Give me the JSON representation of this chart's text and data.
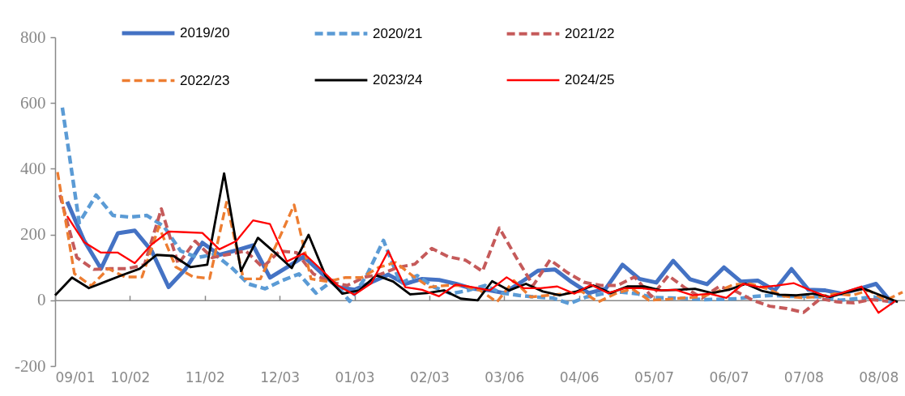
{
  "chart_data": {
    "type": "line",
    "legend": "top",
    "ylim": [
      -200,
      800
    ],
    "yticks": [
      -200,
      0,
      200,
      400,
      600,
      800
    ],
    "xlim": [
      "2022-09-01",
      "2023-08-19"
    ],
    "xticks": [
      {
        "value": "2022-09-01",
        "label": "09/01"
      },
      {
        "value": "2022-10-02",
        "label": "10/02"
      },
      {
        "value": "2022-11-02",
        "label": "11/02"
      },
      {
        "value": "2022-12-03",
        "label": "12/03"
      },
      {
        "value": "2023-01-03",
        "label": "01/03"
      },
      {
        "value": "2023-02-03",
        "label": "02/03"
      },
      {
        "value": "2023-03-06",
        "label": "03/06"
      },
      {
        "value": "2023-04-06",
        "label": "04/06"
      },
      {
        "value": "2023-05-07",
        "label": "05/07"
      },
      {
        "value": "2023-06-07",
        "label": "06/07"
      },
      {
        "value": "2023-07-08",
        "label": "07/08"
      },
      {
        "value": "2023-08-08",
        "label": "08/08"
      }
    ],
    "series": [
      {
        "name": "2019/20",
        "color": "#4472c4",
        "line_style": "solid",
        "x": [
          "2022-09-06",
          "2022-09-13",
          "2022-09-20",
          "2022-09-27",
          "2022-10-04",
          "2022-10-11",
          "2022-10-18",
          "2022-10-25",
          "2022-11-01",
          "2022-11-08",
          "2022-11-15",
          "2022-11-22",
          "2022-11-29",
          "2022-12-06",
          "2022-12-13",
          "2022-12-20",
          "2022-12-27",
          "2023-01-03",
          "2023-01-10",
          "2023-01-17",
          "2023-01-24",
          "2023-01-31",
          "2023-02-07",
          "2023-02-14",
          "2023-02-21",
          "2023-02-28",
          "2023-03-06",
          "2023-03-13",
          "2023-03-20",
          "2023-03-27",
          "2023-04-03",
          "2023-04-10",
          "2023-04-17",
          "2023-04-24",
          "2023-05-01",
          "2023-05-08",
          "2023-05-15",
          "2023-05-22",
          "2023-05-29",
          "2023-06-05",
          "2023-06-12",
          "2023-06-19",
          "2023-06-26",
          "2023-07-03",
          "2023-07-10",
          "2023-07-17",
          "2023-07-24",
          "2023-07-31",
          "2023-08-07",
          "2023-08-14"
        ],
        "values": [
          300,
          182,
          96,
          204,
          212,
          150,
          40,
          95,
          175,
          138,
          152,
          167,
          69,
          100,
          133,
          85,
          40,
          32,
          55,
          78,
          50,
          65,
          62,
          50,
          35,
          30,
          22,
          55,
          90,
          94,
          55,
          22,
          35,
          108,
          65,
          54,
          120,
          64,
          49,
          100,
          57,
          60,
          30,
          95,
          32,
          30,
          20,
          35,
          50,
          -12
        ]
      },
      {
        "name": "2020/21",
        "color": "#5b9bd5",
        "line_style": "dashed",
        "x": [
          "2022-09-04",
          "2022-09-11",
          "2022-09-18",
          "2022-09-25",
          "2022-10-02",
          "2022-10-09",
          "2022-10-16",
          "2022-10-23",
          "2022-10-30",
          "2022-11-06",
          "2022-11-13",
          "2022-11-20",
          "2022-11-27",
          "2022-12-04",
          "2022-12-11",
          "2022-12-18",
          "2022-12-25",
          "2023-01-01",
          "2023-01-08",
          "2023-01-15",
          "2023-01-22",
          "2023-01-29",
          "2023-02-05",
          "2023-02-12",
          "2023-02-19",
          "2023-02-26",
          "2023-03-05",
          "2023-03-12",
          "2023-03-19",
          "2023-03-26",
          "2023-04-02",
          "2023-04-09",
          "2023-04-16",
          "2023-04-23",
          "2023-04-30",
          "2023-05-07",
          "2023-05-14",
          "2023-05-21",
          "2023-05-28",
          "2023-06-04",
          "2023-06-11",
          "2023-06-18",
          "2023-06-25",
          "2023-07-02",
          "2023-07-09",
          "2023-07-16",
          "2023-07-23",
          "2023-07-30",
          "2023-08-06",
          "2023-08-13"
        ],
        "values": [
          586,
          236,
          320,
          258,
          253,
          258,
          225,
          150,
          130,
          140,
          100,
          50,
          35,
          60,
          80,
          22,
          60,
          -3,
          75,
          182,
          52,
          75,
          40,
          20,
          30,
          45,
          22,
          15,
          10,
          7,
          -10,
          10,
          20,
          25,
          20,
          8,
          7,
          5,
          2,
          3,
          5,
          12,
          15,
          12,
          12,
          10,
          0,
          5,
          10,
          -5
        ]
      },
      {
        "name": "2021/22",
        "color": "#c55a5a",
        "line_style": "dashed",
        "x": [
          "2022-09-03",
          "2022-09-10",
          "2022-09-17",
          "2022-09-24",
          "2022-10-01",
          "2022-10-08",
          "2022-10-15",
          "2022-10-22",
          "2022-10-29",
          "2022-11-05",
          "2022-11-12",
          "2022-11-19",
          "2022-11-26",
          "2022-12-03",
          "2022-12-10",
          "2022-12-17",
          "2022-12-24",
          "2022-12-31",
          "2023-01-07",
          "2023-01-14",
          "2023-01-21",
          "2023-01-28",
          "2023-02-04",
          "2023-02-11",
          "2023-02-18",
          "2023-02-25",
          "2023-03-04",
          "2023-03-11",
          "2023-03-18",
          "2023-03-25",
          "2023-04-01",
          "2023-04-08",
          "2023-04-15",
          "2023-04-22",
          "2023-04-29",
          "2023-05-06",
          "2023-05-13",
          "2023-05-20",
          "2023-05-27",
          "2023-06-03",
          "2023-06-10",
          "2023-06-17",
          "2023-06-24",
          "2023-07-01",
          "2023-07-08",
          "2023-07-15",
          "2023-07-22",
          "2023-07-29",
          "2023-08-05",
          "2023-08-12"
        ],
        "values": [
          320,
          130,
          94,
          96,
          96,
          108,
          278,
          110,
          180,
          130,
          140,
          150,
          100,
          150,
          145,
          80,
          55,
          45,
          70,
          80,
          100,
          110,
          158,
          132,
          122,
          88,
          220,
          130,
          45,
          123,
          85,
          55,
          45,
          45,
          71,
          12,
          75,
          37,
          7,
          42,
          27,
          0,
          -18,
          -25,
          -37,
          5,
          -5,
          -8,
          2,
          -3
        ]
      },
      {
        "name": "2022/23",
        "color": "#ed7d31",
        "line_style": "dashed",
        "x": [
          "2022-09-02",
          "2022-09-09",
          "2022-09-16",
          "2022-09-23",
          "2022-09-30",
          "2022-10-07",
          "2022-10-14",
          "2022-10-21",
          "2022-10-28",
          "2022-11-04",
          "2022-11-11",
          "2022-11-18",
          "2022-11-25",
          "2022-12-02",
          "2022-12-09",
          "2022-12-16",
          "2022-12-23",
          "2022-12-30",
          "2023-01-06",
          "2023-01-13",
          "2023-01-20",
          "2023-01-27",
          "2023-02-03",
          "2023-02-10",
          "2023-02-17",
          "2023-02-24",
          "2023-03-03",
          "2023-03-10",
          "2023-03-17",
          "2023-03-24",
          "2023-03-31",
          "2023-04-07",
          "2023-04-14",
          "2023-04-21",
          "2023-04-28",
          "2023-05-05",
          "2023-05-12",
          "2023-05-19",
          "2023-05-26",
          "2023-06-02",
          "2023-06-09",
          "2023-06-16",
          "2023-06-23",
          "2023-06-30",
          "2023-07-07",
          "2023-07-14",
          "2023-07-21",
          "2023-07-28",
          "2023-08-04",
          "2023-08-11",
          "2023-08-18"
        ],
        "values": [
          390,
          81,
          44,
          96,
          71,
          71,
          224,
          101,
          72,
          66,
          298,
          65,
          65,
          175,
          290,
          65,
          57,
          69,
          69,
          100,
          115,
          75,
          40,
          45,
          45,
          30,
          -5,
          60,
          10,
          15,
          20,
          27,
          -5,
          20,
          35,
          0,
          3,
          7,
          10,
          25,
          48,
          50,
          35,
          12,
          8,
          10,
          20,
          15,
          30,
          0,
          25
        ]
      },
      {
        "name": "2023/24",
        "color": "#000000",
        "line_style": "solid",
        "x": [
          "2022-09-01",
          "2022-09-08",
          "2022-09-15",
          "2022-09-22",
          "2022-09-29",
          "2022-10-06",
          "2022-10-13",
          "2022-10-20",
          "2022-10-27",
          "2022-11-03",
          "2022-11-10",
          "2022-11-17",
          "2022-11-24",
          "2022-12-01",
          "2022-12-08",
          "2022-12-15",
          "2022-12-22",
          "2022-12-29",
          "2023-01-05",
          "2023-01-12",
          "2023-01-19",
          "2023-01-26",
          "2023-02-02",
          "2023-02-09",
          "2023-02-16",
          "2023-02-23",
          "2023-03-01",
          "2023-03-08",
          "2023-03-15",
          "2023-03-22",
          "2023-03-29",
          "2023-04-05",
          "2023-04-12",
          "2023-04-19",
          "2023-04-26",
          "2023-05-03",
          "2023-05-10",
          "2023-05-17",
          "2023-05-24",
          "2023-05-31",
          "2023-06-07",
          "2023-06-14",
          "2023-06-21",
          "2023-06-28",
          "2023-07-05",
          "2023-07-12",
          "2023-07-19",
          "2023-07-26",
          "2023-08-02",
          "2023-08-09",
          "2023-08-16"
        ],
        "values": [
          15,
          69,
          37,
          57,
          77,
          96,
          138,
          135,
          101,
          108,
          386,
          89,
          190,
          145,
          98,
          199,
          75,
          20,
          30,
          76,
          57,
          18,
          22,
          30,
          5,
          0,
          58,
          30,
          50,
          27,
          15,
          27,
          45,
          22,
          42,
          42,
          30,
          32,
          35,
          22,
          32,
          50,
          28,
          17,
          15,
          20,
          10,
          25,
          35,
          15,
          -5
        ]
      },
      {
        "name": "2024/25",
        "color": "#ff0000",
        "line_style": "solid",
        "x": [
          "2022-09-06",
          "2022-09-13",
          "2022-09-20",
          "2022-09-27",
          "2022-10-04",
          "2022-10-11",
          "2022-10-18",
          "2022-10-25",
          "2022-11-01",
          "2022-11-08",
          "2022-11-15",
          "2022-11-22",
          "2022-11-29",
          "2022-12-06",
          "2022-12-13",
          "2022-12-20",
          "2022-12-27",
          "2023-01-03",
          "2023-01-10",
          "2023-01-17",
          "2023-01-24",
          "2023-01-31",
          "2023-02-07",
          "2023-02-14",
          "2023-02-21",
          "2023-02-28",
          "2023-03-07",
          "2023-03-14",
          "2023-03-21",
          "2023-03-28",
          "2023-04-04",
          "2023-04-11",
          "2023-04-18",
          "2023-04-25",
          "2023-05-02",
          "2023-05-09",
          "2023-05-16",
          "2023-05-23",
          "2023-05-30",
          "2023-06-06",
          "2023-06-13",
          "2023-06-20",
          "2023-06-27",
          "2023-07-04",
          "2023-07-11",
          "2023-07-18",
          "2023-07-25",
          "2023-08-01",
          "2023-08-08",
          "2023-08-15"
        ],
        "values": [
          256,
          177,
          145,
          145,
          113,
          170,
          209,
          207,
          205,
          155,
          180,
          243,
          232,
          118,
          143,
          95,
          45,
          17,
          52,
          150,
          40,
          32,
          12,
          48,
          40,
          30,
          70,
          37,
          37,
          42,
          20,
          47,
          22,
          37,
          37,
          30,
          32,
          15,
          20,
          7,
          50,
          40,
          45,
          52,
          30,
          10,
          25,
          42,
          -38,
          -2
        ]
      }
    ]
  }
}
